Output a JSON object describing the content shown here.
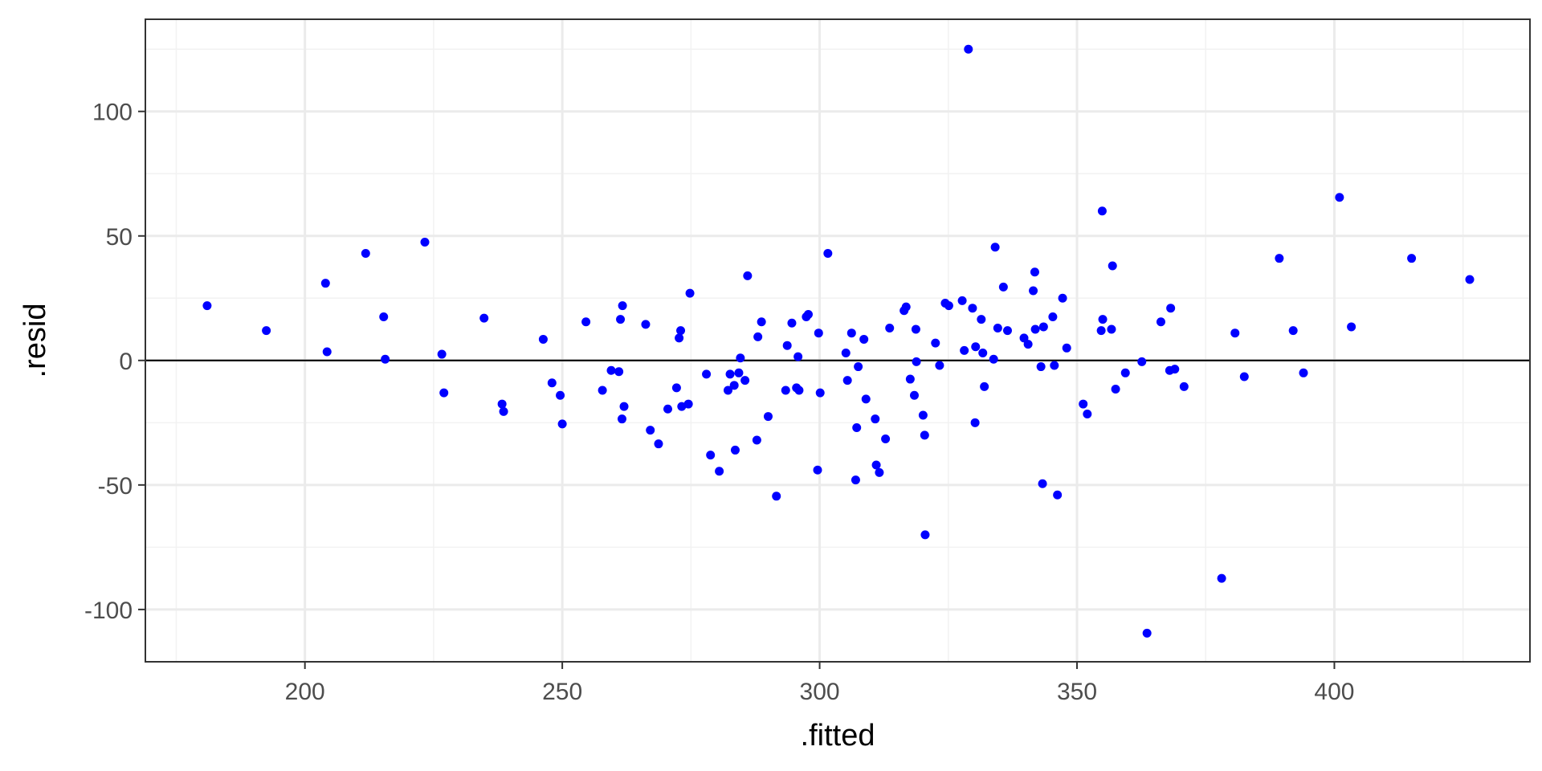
{
  "colors": {
    "point": "#0000ff",
    "grid_major": "#ebebeb",
    "grid_minor": "#f2f2f2",
    "panel_border": "#333333",
    "hline": "#000000",
    "tick_text": "#4d4d4d"
  },
  "chart_data": {
    "type": "scatter",
    "title": "",
    "xlabel": ".fitted",
    "ylabel": ".resid",
    "xlim": [
      169,
      438
    ],
    "ylim": [
      -121,
      137
    ],
    "xticks": [
      200,
      250,
      300,
      350,
      400
    ],
    "yticks": [
      -100,
      -50,
      0,
      50,
      100
    ],
    "xtick_labels": [
      "200",
      "250",
      "300",
      "350",
      "400"
    ],
    "ytick_labels": [
      "-100",
      "-50",
      "0",
      "50",
      "100"
    ],
    "grid": true,
    "hline": 0,
    "points": [
      [
        181,
        22
      ],
      [
        192.5,
        12
      ],
      [
        204,
        31
      ],
      [
        204.3,
        3.5
      ],
      [
        211.8,
        43
      ],
      [
        215.3,
        17.5
      ],
      [
        215.6,
        0.5
      ],
      [
        223.3,
        47.5
      ],
      [
        226.6,
        2.5
      ],
      [
        227,
        -13
      ],
      [
        234.8,
        17
      ],
      [
        238.3,
        -17.5
      ],
      [
        238.6,
        -20.5
      ],
      [
        246.3,
        8.5
      ],
      [
        248,
        -9
      ],
      [
        249.6,
        -14
      ],
      [
        250,
        -25.5
      ],
      [
        254.6,
        15.5
      ],
      [
        257.8,
        -12
      ],
      [
        259.5,
        -4
      ],
      [
        261,
        -4.5
      ],
      [
        261.3,
        16.5
      ],
      [
        261.6,
        -23.5
      ],
      [
        261.7,
        22
      ],
      [
        262,
        -18.5
      ],
      [
        266.2,
        14.5
      ],
      [
        267.1,
        -28
      ],
      [
        268.7,
        -33.5
      ],
      [
        270.5,
        -19.5
      ],
      [
        272.2,
        -11
      ],
      [
        272.7,
        9
      ],
      [
        273,
        12
      ],
      [
        273.2,
        -18.5
      ],
      [
        274.5,
        -17.5
      ],
      [
        274.8,
        27
      ],
      [
        278,
        -5.5
      ],
      [
        278.8,
        -38
      ],
      [
        280.5,
        -44.5
      ],
      [
        282.2,
        -12
      ],
      [
        282.6,
        -5.5
      ],
      [
        283.4,
        -10
      ],
      [
        283.6,
        -36
      ],
      [
        284.3,
        -5
      ],
      [
        284.6,
        1
      ],
      [
        285.5,
        -8
      ],
      [
        286,
        34
      ],
      [
        287.8,
        -32
      ],
      [
        288,
        9.5
      ],
      [
        288.7,
        15.5
      ],
      [
        290,
        -22.5
      ],
      [
        291.6,
        -54.5
      ],
      [
        293.4,
        -12
      ],
      [
        293.7,
        6
      ],
      [
        294.6,
        15
      ],
      [
        295.5,
        -11
      ],
      [
        295.8,
        1.5
      ],
      [
        296,
        -12
      ],
      [
        297.4,
        17.5
      ],
      [
        297.8,
        18.5
      ],
      [
        299.6,
        -44
      ],
      [
        300.1,
        -13
      ],
      [
        299.8,
        11
      ],
      [
        301.6,
        43
      ],
      [
        305.1,
        3
      ],
      [
        305.4,
        -8
      ],
      [
        306.2,
        11
      ],
      [
        307,
        -48
      ],
      [
        307.2,
        -27
      ],
      [
        307.5,
        -2.5
      ],
      [
        308.6,
        8.5
      ],
      [
        309,
        -15.5
      ],
      [
        310.8,
        -23.5
      ],
      [
        311,
        -42
      ],
      [
        311.6,
        -45
      ],
      [
        312.8,
        -31.5
      ],
      [
        313.6,
        13
      ],
      [
        316.4,
        20
      ],
      [
        316.8,
        21.5
      ],
      [
        317.6,
        -7.5
      ],
      [
        318.4,
        -14
      ],
      [
        318.8,
        -0.5
      ],
      [
        318.7,
        12.5
      ],
      [
        320.1,
        -22
      ],
      [
        320.4,
        -30
      ],
      [
        320.5,
        -70
      ],
      [
        322.5,
        7
      ],
      [
        323.3,
        -2
      ],
      [
        324.4,
        23
      ],
      [
        325.1,
        22
      ],
      [
        327.7,
        24
      ],
      [
        328.1,
        4
      ],
      [
        328.9,
        125
      ],
      [
        329.7,
        21
      ],
      [
        330.2,
        -25
      ],
      [
        330.3,
        5.5
      ],
      [
        331.4,
        16.5
      ],
      [
        331.7,
        3
      ],
      [
        332,
        -10.5
      ],
      [
        333.8,
        0.5
      ],
      [
        334.1,
        45.5
      ],
      [
        334.6,
        13
      ],
      [
        335.7,
        29.5
      ],
      [
        336.5,
        12
      ],
      [
        339.7,
        9
      ],
      [
        340.5,
        6.5
      ],
      [
        341.5,
        28
      ],
      [
        341.8,
        35.5
      ],
      [
        341.9,
        12.5
      ],
      [
        343,
        -2.5
      ],
      [
        343.3,
        -49.5
      ],
      [
        343.5,
        13.5
      ],
      [
        345.3,
        17.5
      ],
      [
        345.6,
        -2
      ],
      [
        346.2,
        -54
      ],
      [
        347.2,
        25
      ],
      [
        348,
        5
      ],
      [
        351.2,
        -17.5
      ],
      [
        352,
        -21.5
      ],
      [
        354.7,
        12
      ],
      [
        354.9,
        60
      ],
      [
        355,
        16.5
      ],
      [
        356.7,
        12.5
      ],
      [
        356.9,
        38
      ],
      [
        357.5,
        -11.5
      ],
      [
        359.4,
        -5
      ],
      [
        362.6,
        -0.5
      ],
      [
        363.6,
        -109.5
      ],
      [
        366.3,
        15.5
      ],
      [
        368,
        -4
      ],
      [
        368.2,
        21
      ],
      [
        369,
        -3.5
      ],
      [
        370.8,
        -10.5
      ],
      [
        378.1,
        -87.5
      ],
      [
        380.7,
        11
      ],
      [
        382.5,
        -6.5
      ],
      [
        389.3,
        41
      ],
      [
        392,
        12
      ],
      [
        394,
        -5
      ],
      [
        401,
        65.5
      ],
      [
        403.3,
        13.5
      ],
      [
        415,
        41
      ],
      [
        426.3,
        32.5
      ]
    ]
  }
}
